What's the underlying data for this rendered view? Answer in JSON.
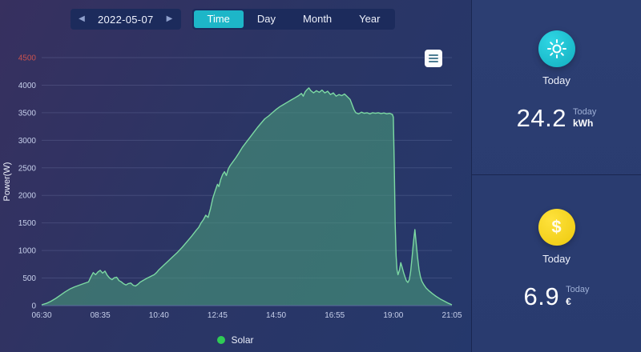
{
  "topbar": {
    "prev_icon": "◀",
    "next_icon": "▶",
    "date": "2022-05-07",
    "tabs": [
      {
        "label": "Time"
      },
      {
        "label": "Day"
      },
      {
        "label": "Month"
      },
      {
        "label": "Year"
      }
    ],
    "active_tab": "Time"
  },
  "chart_data": {
    "type": "area",
    "title": "",
    "xlabel": "",
    "ylabel": "Power(W)",
    "ylim": [
      0,
      4500
    ],
    "yticks": [
      0,
      500,
      1000,
      1500,
      2000,
      2500,
      3000,
      3500,
      4000,
      4500
    ],
    "ytick_highlight": {
      "value": 4500,
      "color": "#c9524f"
    },
    "x_ticks": [
      "06:30",
      "08:35",
      "10:40",
      "12:45",
      "14:50",
      "16:55",
      "19:00",
      "21:05"
    ],
    "x_range_minutes": [
      0,
      875
    ],
    "grid": true,
    "legend_position": "bottom",
    "series": [
      {
        "name": "Solar",
        "line_color": "#7cd8a3",
        "fill_color": "rgba(72,156,122,0.58)",
        "points": [
          [
            0,
            15
          ],
          [
            10,
            40
          ],
          [
            20,
            80
          ],
          [
            30,
            130
          ],
          [
            40,
            190
          ],
          [
            50,
            250
          ],
          [
            60,
            300
          ],
          [
            70,
            340
          ],
          [
            80,
            370
          ],
          [
            90,
            400
          ],
          [
            100,
            430
          ],
          [
            105,
            520
          ],
          [
            110,
            600
          ],
          [
            115,
            560
          ],
          [
            120,
            610
          ],
          [
            125,
            640
          ],
          [
            130,
            590
          ],
          [
            135,
            625
          ],
          [
            140,
            550
          ],
          [
            145,
            500
          ],
          [
            150,
            470
          ],
          [
            155,
            505
          ],
          [
            160,
            515
          ],
          [
            165,
            455
          ],
          [
            170,
            430
          ],
          [
            175,
            395
          ],
          [
            180,
            375
          ],
          [
            185,
            400
          ],
          [
            190,
            410
          ],
          [
            195,
            370
          ],
          [
            200,
            355
          ],
          [
            205,
            385
          ],
          [
            210,
            425
          ],
          [
            215,
            450
          ],
          [
            220,
            475
          ],
          [
            225,
            500
          ],
          [
            230,
            520
          ],
          [
            235,
            540
          ],
          [
            240,
            560
          ],
          [
            245,
            600
          ],
          [
            250,
            650
          ],
          [
            255,
            690
          ],
          [
            260,
            730
          ],
          [
            270,
            810
          ],
          [
            280,
            890
          ],
          [
            290,
            970
          ],
          [
            300,
            1060
          ],
          [
            310,
            1160
          ],
          [
            320,
            1260
          ],
          [
            330,
            1370
          ],
          [
            335,
            1420
          ],
          [
            340,
            1500
          ],
          [
            345,
            1560
          ],
          [
            350,
            1640
          ],
          [
            355,
            1600
          ],
          [
            360,
            1760
          ],
          [
            365,
            1950
          ],
          [
            370,
            2080
          ],
          [
            375,
            2200
          ],
          [
            378,
            2160
          ],
          [
            382,
            2290
          ],
          [
            386,
            2380
          ],
          [
            390,
            2430
          ],
          [
            394,
            2360
          ],
          [
            398,
            2480
          ],
          [
            402,
            2540
          ],
          [
            408,
            2610
          ],
          [
            414,
            2680
          ],
          [
            420,
            2760
          ],
          [
            428,
            2870
          ],
          [
            436,
            2960
          ],
          [
            444,
            3050
          ],
          [
            452,
            3140
          ],
          [
            460,
            3230
          ],
          [
            468,
            3310
          ],
          [
            476,
            3390
          ],
          [
            484,
            3440
          ],
          [
            492,
            3500
          ],
          [
            500,
            3560
          ],
          [
            508,
            3610
          ],
          [
            516,
            3650
          ],
          [
            524,
            3690
          ],
          [
            532,
            3730
          ],
          [
            540,
            3770
          ],
          [
            548,
            3810
          ],
          [
            554,
            3850
          ],
          [
            558,
            3800
          ],
          [
            562,
            3880
          ],
          [
            566,
            3920
          ],
          [
            570,
            3950
          ],
          [
            574,
            3900
          ],
          [
            580,
            3860
          ],
          [
            586,
            3900
          ],
          [
            592,
            3870
          ],
          [
            598,
            3910
          ],
          [
            604,
            3860
          ],
          [
            610,
            3890
          ],
          [
            616,
            3830
          ],
          [
            622,
            3860
          ],
          [
            628,
            3800
          ],
          [
            634,
            3830
          ],
          [
            640,
            3810
          ],
          [
            646,
            3840
          ],
          [
            652,
            3790
          ],
          [
            658,
            3740
          ],
          [
            662,
            3650
          ],
          [
            666,
            3560
          ],
          [
            670,
            3500
          ],
          [
            676,
            3480
          ],
          [
            682,
            3510
          ],
          [
            688,
            3490
          ],
          [
            694,
            3500
          ],
          [
            700,
            3480
          ],
          [
            706,
            3500
          ],
          [
            712,
            3490
          ],
          [
            718,
            3500
          ],
          [
            724,
            3485
          ],
          [
            730,
            3495
          ],
          [
            736,
            3480
          ],
          [
            742,
            3490
          ],
          [
            748,
            3470
          ],
          [
            750,
            3420
          ],
          [
            752,
            2600
          ],
          [
            754,
            1500
          ],
          [
            756,
            900
          ],
          [
            758,
            650
          ],
          [
            760,
            560
          ],
          [
            763,
            640
          ],
          [
            766,
            780
          ],
          [
            769,
            690
          ],
          [
            772,
            600
          ],
          [
            775,
            520
          ],
          [
            778,
            450
          ],
          [
            781,
            420
          ],
          [
            784,
            470
          ],
          [
            787,
            620
          ],
          [
            790,
            880
          ],
          [
            793,
            1150
          ],
          [
            796,
            1380
          ],
          [
            799,
            1120
          ],
          [
            802,
            860
          ],
          [
            805,
            650
          ],
          [
            808,
            520
          ],
          [
            811,
            440
          ],
          [
            815,
            380
          ],
          [
            820,
            320
          ],
          [
            826,
            270
          ],
          [
            833,
            220
          ],
          [
            841,
            170
          ],
          [
            850,
            120
          ],
          [
            860,
            75
          ],
          [
            868,
            40
          ],
          [
            875,
            15
          ]
        ]
      }
    ],
    "legend": [
      {
        "label": "Solar",
        "color": "#2fcb55"
      }
    ]
  },
  "cards": {
    "energy": {
      "icon": "sun-icon",
      "title": "Today",
      "value": "24.2",
      "unit_label": "Today",
      "unit": "kWh",
      "icon_color": "#16c2d4"
    },
    "revenue": {
      "icon": "dollar-icon",
      "glyph": "$",
      "title": "Today",
      "value": "6.9",
      "unit_label": "Today",
      "unit": "€",
      "icon_color": "#f2d316"
    }
  }
}
